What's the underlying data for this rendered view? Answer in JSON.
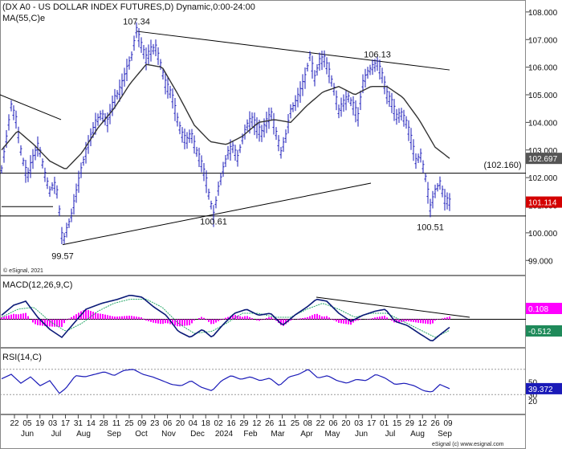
{
  "chart_data": {
    "type": "line",
    "title": "(DX A0 - US DOLLAR INDEX FUTURES,D) Dynamic,0:00-24:00",
    "ma_label": "MA(55,C)e",
    "watermark": "© eSignal, 2021",
    "footer": "eSignal (c) www.esignal.com",
    "ylim": [
      98.6,
      108.2
    ],
    "yticks": [
      "108.000",
      "107.000",
      "106.000",
      "105.000",
      "104.000",
      "103.000",
      "102.000",
      "101.000",
      "100.000",
      "99.000"
    ],
    "ytick_values": [
      108,
      107,
      106,
      105,
      104,
      103,
      102,
      101,
      100,
      99
    ],
    "x_ticks": [
      "22",
      "05",
      "19",
      "03",
      "17",
      "31",
      "14",
      "28",
      "11",
      "25",
      "09",
      "23",
      "06",
      "20",
      "04",
      "18",
      "02",
      "16",
      "29",
      "12",
      "26",
      "11",
      "25",
      "08",
      "22",
      "06",
      "20",
      "03",
      "17",
      "01",
      "15",
      "29",
      "12",
      "26",
      "09"
    ],
    "month_labels": [
      "Jun",
      "Jul",
      "Aug",
      "Sep",
      "Oct",
      "Nov",
      "Dec",
      "2024",
      "Feb",
      "Mar",
      "Apr",
      "May",
      "Jun",
      "Jul",
      "Aug",
      "Sep"
    ],
    "price_keypoints": [
      [
        0,
        102.3
      ],
      [
        5,
        103.2
      ],
      [
        12,
        104.6
      ],
      [
        18,
        104.1
      ],
      [
        25,
        102.8
      ],
      [
        32,
        102.0
      ],
      [
        38,
        102.6
      ],
      [
        46,
        103.2
      ],
      [
        54,
        102.1
      ],
      [
        60,
        101.5
      ],
      [
        65,
        101.8
      ],
      [
        70,
        101.4
      ],
      [
        76,
        99.6
      ],
      [
        82,
        100.2
      ],
      [
        86,
        100.5
      ],
      [
        92,
        101.3
      ],
      [
        100,
        102.4
      ],
      [
        108,
        103.2
      ],
      [
        116,
        103.9
      ],
      [
        124,
        104.3
      ],
      [
        132,
        104.0
      ],
      [
        140,
        104.8
      ],
      [
        148,
        105.2
      ],
      [
        156,
        105.9
      ],
      [
        162,
        106.4
      ],
      [
        168,
        107.34
      ],
      [
        174,
        106.8
      ],
      [
        180,
        106.3
      ],
      [
        186,
        106.6
      ],
      [
        192,
        106.7
      ],
      [
        198,
        106.1
      ],
      [
        204,
        105.4
      ],
      [
        212,
        105.0
      ],
      [
        218,
        104.2
      ],
      [
        224,
        103.6
      ],
      [
        230,
        103.3
      ],
      [
        236,
        103.6
      ],
      [
        242,
        103.0
      ],
      [
        248,
        102.6
      ],
      [
        254,
        102.0
      ],
      [
        258,
        101.4
      ],
      [
        264,
        100.61
      ],
      [
        270,
        101.6
      ],
      [
        276,
        102.3
      ],
      [
        282,
        102.9
      ],
      [
        288,
        103.1
      ],
      [
        294,
        102.7
      ],
      [
        300,
        103.4
      ],
      [
        306,
        103.9
      ],
      [
        312,
        104.1
      ],
      [
        318,
        103.8
      ],
      [
        324,
        103.6
      ],
      [
        330,
        104.0
      ],
      [
        336,
        104.3
      ],
      [
        342,
        103.6
      ],
      [
        348,
        102.9
      ],
      [
        354,
        103.5
      ],
      [
        360,
        104.4
      ],
      [
        366,
        104.7
      ],
      [
        372,
        105.1
      ],
      [
        378,
        105.6
      ],
      [
        384,
        106.4
      ],
      [
        390,
        105.6
      ],
      [
        396,
        106.2
      ],
      [
        402,
        106.3
      ],
      [
        408,
        105.8
      ],
      [
        414,
        105.2
      ],
      [
        420,
        104.4
      ],
      [
        426,
        104.7
      ],
      [
        432,
        104.9
      ],
      [
        438,
        104.6
      ],
      [
        444,
        104.2
      ],
      [
        450,
        105.4
      ],
      [
        456,
        105.8
      ],
      [
        462,
        106.0
      ],
      [
        468,
        106.13
      ],
      [
        474,
        105.7
      ],
      [
        480,
        105.0
      ],
      [
        486,
        104.7
      ],
      [
        492,
        104.2
      ],
      [
        498,
        104.3
      ],
      [
        504,
        104.0
      ],
      [
        510,
        103.4
      ],
      [
        516,
        102.6
      ],
      [
        522,
        102.8
      ],
      [
        528,
        102.0
      ],
      [
        534,
        100.9
      ],
      [
        540,
        101.5
      ],
      [
        546,
        101.8
      ],
      [
        552,
        101.2
      ],
      [
        558,
        101.114
      ]
    ],
    "ma_keypoints": [
      [
        0,
        103.0
      ],
      [
        20,
        103.7
      ],
      [
        40,
        103.2
      ],
      [
        60,
        102.6
      ],
      [
        80,
        102.3
      ],
      [
        100,
        102.9
      ],
      [
        120,
        103.8
      ],
      [
        140,
        104.5
      ],
      [
        160,
        105.4
      ],
      [
        180,
        106.1
      ],
      [
        200,
        106.0
      ],
      [
        220,
        105.0
      ],
      [
        240,
        103.9
      ],
      [
        260,
        103.3
      ],
      [
        280,
        103.2
      ],
      [
        300,
        103.5
      ],
      [
        320,
        104.0
      ],
      [
        340,
        104.1
      ],
      [
        360,
        104.0
      ],
      [
        380,
        104.6
      ],
      [
        400,
        105.1
      ],
      [
        420,
        105.3
      ],
      [
        440,
        105.0
      ],
      [
        460,
        105.3
      ],
      [
        480,
        105.3
      ],
      [
        500,
        104.9
      ],
      [
        520,
        104.1
      ],
      [
        540,
        103.1
      ],
      [
        558,
        102.697
      ]
    ],
    "annotations": [
      {
        "text": "107.34",
        "value": 107.34
      },
      {
        "text": "106.13",
        "value": 106.13
      },
      {
        "text": "(102.160)",
        "value": 102.16
      },
      {
        "text": "100.61",
        "value": 100.61
      },
      {
        "text": "100.51",
        "value": 100.51
      },
      {
        "text": "99.57",
        "value": 99.57
      }
    ],
    "hlines": [
      102.16,
      100.61
    ],
    "last_price": "101.114",
    "last_ma": "102.697",
    "macd": {
      "label": "MACD(12,26,9,C)",
      "ylim": [
        -1.3,
        1.5
      ],
      "macd_value": "0.108",
      "signal_value": "-0.512",
      "hist_color": "#ff00ff",
      "macd_keypoints": [
        [
          0,
          0.2
        ],
        [
          15,
          0.7
        ],
        [
          30,
          0.9
        ],
        [
          45,
          0.1
        ],
        [
          60,
          -0.5
        ],
        [
          75,
          -0.9
        ],
        [
          90,
          -0.2
        ],
        [
          105,
          0.5
        ],
        [
          125,
          0.8
        ],
        [
          145,
          1.0
        ],
        [
          160,
          1.2
        ],
        [
          175,
          1.1
        ],
        [
          190,
          0.6
        ],
        [
          205,
          0.2
        ],
        [
          220,
          -0.6
        ],
        [
          235,
          -0.9
        ],
        [
          250,
          -0.5
        ],
        [
          262,
          -0.9
        ],
        [
          275,
          -0.3
        ],
        [
          290,
          0.3
        ],
        [
          305,
          0.5
        ],
        [
          320,
          0.2
        ],
        [
          335,
          0.3
        ],
        [
          350,
          -0.3
        ],
        [
          365,
          0.2
        ],
        [
          380,
          0.6
        ],
        [
          392,
          1.0
        ],
        [
          405,
          0.9
        ],
        [
          420,
          0.3
        ],
        [
          435,
          -0.1
        ],
        [
          450,
          0.2
        ],
        [
          465,
          0.4
        ],
        [
          478,
          0.5
        ],
        [
          490,
          -0.1
        ],
        [
          505,
          -0.3
        ],
        [
          520,
          -0.7
        ],
        [
          536,
          -1.1
        ],
        [
          545,
          -0.8
        ],
        [
          558,
          -0.4
        ]
      ],
      "signal_keypoints": [
        [
          0,
          0.1
        ],
        [
          20,
          0.5
        ],
        [
          40,
          0.6
        ],
        [
          60,
          -0.1
        ],
        [
          80,
          -0.6
        ],
        [
          100,
          -0.2
        ],
        [
          120,
          0.4
        ],
        [
          140,
          0.8
        ],
        [
          160,
          1.0
        ],
        [
          180,
          1.0
        ],
        [
          200,
          0.6
        ],
        [
          220,
          -0.2
        ],
        [
          240,
          -0.7
        ],
        [
          262,
          -0.6
        ],
        [
          280,
          -0.2
        ],
        [
          300,
          0.3
        ],
        [
          320,
          0.3
        ],
        [
          340,
          0.1
        ],
        [
          360,
          0.1
        ],
        [
          380,
          0.5
        ],
        [
          400,
          0.8
        ],
        [
          420,
          0.5
        ],
        [
          440,
          0.1
        ],
        [
          460,
          0.3
        ],
        [
          480,
          0.3
        ],
        [
          500,
          -0.1
        ],
        [
          520,
          -0.5
        ],
        [
          540,
          -0.9
        ],
        [
          558,
          -0.55
        ]
      ]
    },
    "rsi": {
      "label": "RSI(14,C)",
      "ylim": [
        0,
        100
      ],
      "yticks": [
        "50",
        "30",
        "20"
      ],
      "ytick_values": [
        50,
        30,
        20
      ],
      "value": "39.372",
      "keypoints": [
        [
          0,
          55
        ],
        [
          12,
          62
        ],
        [
          24,
          48
        ],
        [
          36,
          58
        ],
        [
          48,
          44
        ],
        [
          60,
          52
        ],
        [
          72,
          32
        ],
        [
          80,
          40
        ],
        [
          92,
          60
        ],
        [
          104,
          58
        ],
        [
          116,
          62
        ],
        [
          128,
          66
        ],
        [
          140,
          60
        ],
        [
          152,
          68
        ],
        [
          164,
          70
        ],
        [
          176,
          62
        ],
        [
          188,
          58
        ],
        [
          200,
          52
        ],
        [
          212,
          46
        ],
        [
          224,
          44
        ],
        [
          236,
          52
        ],
        [
          248,
          42
        ],
        [
          262,
          36
        ],
        [
          274,
          52
        ],
        [
          286,
          60
        ],
        [
          298,
          54
        ],
        [
          310,
          58
        ],
        [
          322,
          52
        ],
        [
          334,
          56
        ],
        [
          346,
          44
        ],
        [
          358,
          58
        ],
        [
          370,
          62
        ],
        [
          382,
          70
        ],
        [
          394,
          56
        ],
        [
          406,
          60
        ],
        [
          418,
          52
        ],
        [
          430,
          48
        ],
        [
          442,
          54
        ],
        [
          454,
          52
        ],
        [
          466,
          62
        ],
        [
          478,
          56
        ],
        [
          490,
          46
        ],
        [
          502,
          48
        ],
        [
          514,
          44
        ],
        [
          526,
          36
        ],
        [
          536,
          34
        ],
        [
          546,
          46
        ],
        [
          558,
          39.372
        ]
      ]
    }
  }
}
